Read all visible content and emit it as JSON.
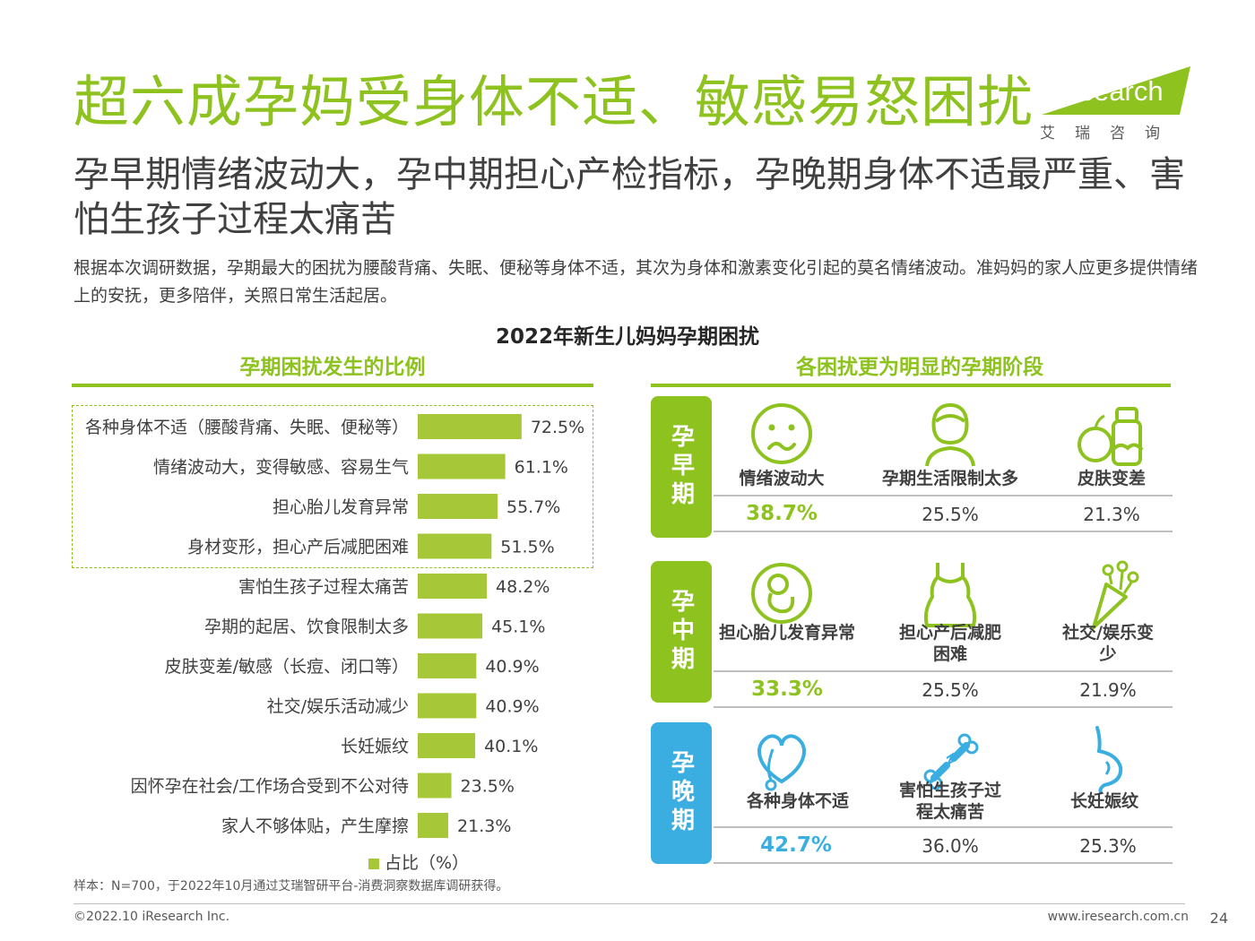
{
  "title": "超六成孕妈受身体不适、敏感易怒困扰",
  "subtitle": "孕早期情绪波动大，孕中期担心产检指标，孕晚期身体不适最严重、害怕生孩子过程太痛苦",
  "description": "根据本次调研数据，孕期最大的困扰为腰酸背痛、失眠、便秘等身体不适，其次为身体和激素变化引起的莫名情绪波动。准妈妈的家人应更多提供情绪上的安抚，更多陪伴，关照日常生活起居。",
  "logo": {
    "brand": "iResearch",
    "sub": "艾瑞咨询"
  },
  "colors": {
    "green": "#8dc21f",
    "bar": "#a6c838",
    "stage_early": "#8dc21f",
    "stage_mid": "#8dc21f",
    "stage_late": "#3aaee0"
  },
  "chart_data": [
    {
      "type": "bar",
      "title": "孕期困扰发生的比例",
      "legend": "占比（%）",
      "legend_position": "bottom",
      "categories": [
        "各种身体不适（腰酸背痛、失眠、便秘等）",
        "情绪波动大，变得敏感、容易生气",
        "担心胎儿发育异常",
        "身材变形，担心产后减肥困难",
        "害怕生孩子过程太痛苦",
        "孕期的起居、饮食限制太多",
        "皮肤变差/敏感（长痘、闭口等）",
        "社交/娱乐活动减少",
        "长妊娠纹",
        "因怀孕在社会/工作场合受到不公对待",
        "家人不够体贴，产生摩擦"
      ],
      "values": [
        72.5,
        61.1,
        55.7,
        51.5,
        48.2,
        45.1,
        40.9,
        40.9,
        40.1,
        23.5,
        21.3
      ],
      "value_labels": [
        "72.5%",
        "61.1%",
        "55.7%",
        "51.5%",
        "48.2%",
        "45.1%",
        "40.9%",
        "40.9%",
        "40.1%",
        "23.5%",
        "21.3%"
      ],
      "orientation": "horizontal",
      "xlim": [
        0,
        100
      ]
    },
    {
      "type": "table",
      "title": "各困扰更为明显的孕期阶段",
      "stages": [
        {
          "name": "孕早期",
          "items": [
            {
              "label": "情绪波动大",
              "value": "38.7%",
              "icon": "sad-face-icon"
            },
            {
              "label": "孕期生活限制太多",
              "value": "25.5%",
              "icon": "pregnant-woman-icon"
            },
            {
              "label": "皮肤变差",
              "value": "21.3%",
              "icon": "skincare-products-icon"
            }
          ]
        },
        {
          "name": "孕中期",
          "items": [
            {
              "label": "担心胎儿发育异常",
              "value": "33.3%",
              "icon": "fetus-icon"
            },
            {
              "label": "担心产后减肥困难",
              "value": "25.5%",
              "icon": "maternity-dress-icon"
            },
            {
              "label": "社交/娱乐变少",
              "value": "21.9%",
              "icon": "party-popper-icon"
            }
          ]
        },
        {
          "name": "孕晚期",
          "items": [
            {
              "label": "各种身体不适",
              "value": "42.7%",
              "icon": "heart-stethoscope-icon"
            },
            {
              "label": "害怕生孩子过程太痛苦",
              "value": "36.0%",
              "icon": "broken-bone-icon"
            },
            {
              "label": "长妊娠纹",
              "value": "25.3%",
              "icon": "pregnant-belly-icon"
            }
          ]
        }
      ]
    }
  ],
  "chart_main_title": "2022年新生儿妈妈孕期困扰",
  "footnote": "样本：N=700，于2022年10月通过艾瑞智研平台-消费洞察数据库调研获得。",
  "footer": {
    "copyright": "©2022.10 iResearch Inc.",
    "website": "www.iresearch.com.cn",
    "page": "24"
  }
}
